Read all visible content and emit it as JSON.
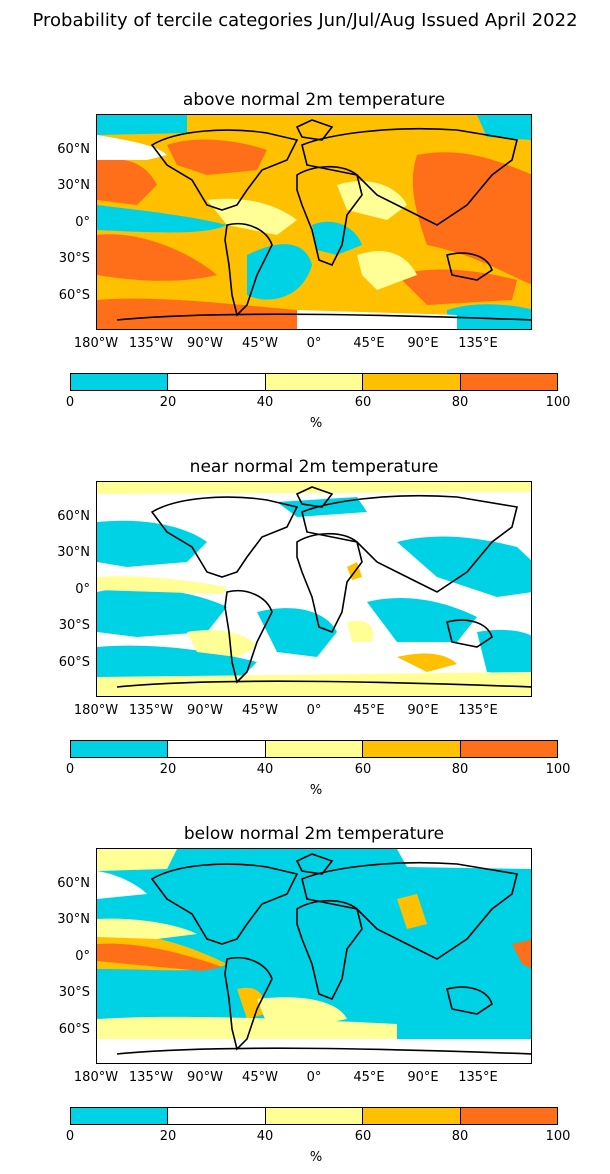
{
  "title": "Probability of tercile categories Jun/Jul/Aug Issued April 2022",
  "panels": [
    {
      "title": "above normal 2m temperature"
    },
    {
      "title": "near normal 2m temperature"
    },
    {
      "title": "below normal 2m temperature"
    }
  ],
  "lat_labels": [
    "60°N",
    "30°N",
    "0°",
    "30°S",
    "60°S"
  ],
  "lon_labels": [
    "180°W",
    "135°W",
    "90°W",
    "45°W",
    "0°",
    "45°E",
    "90°E",
    "135°E"
  ],
  "colorbar": {
    "ticks": [
      "0",
      "20",
      "40",
      "60",
      "80",
      "100"
    ],
    "unit": "%",
    "colors": [
      "#00d2e6",
      "#ffffff",
      "#ffff96",
      "#ffc000",
      "#ff6e18"
    ]
  }
}
